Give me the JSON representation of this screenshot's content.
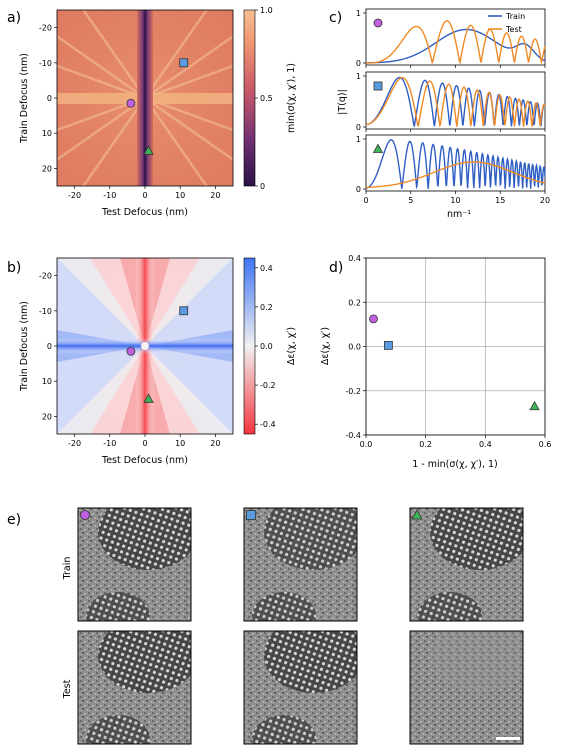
{
  "panel_labels": {
    "a": "a)",
    "b": "b)",
    "c": "c)",
    "d": "d)",
    "e": "e)"
  },
  "panel_a": {
    "xlabel": "Test Defocus (nm)",
    "ylabel": "Train Defocus (nm)",
    "xticks": [
      "-20",
      "-10",
      "0",
      "10",
      "20"
    ],
    "yticks": [
      "-20",
      "-10",
      "0",
      "10",
      "20"
    ],
    "colorbar_label": "min(σ(χ, χ′), 1)",
    "colorbar_ticks": [
      "1.0",
      "0.5",
      "0"
    ]
  },
  "panel_b": {
    "xlabel": "Test Defocus (nm)",
    "ylabel": "Train Defocus (nm)",
    "xticks": [
      "-20",
      "-10",
      "0",
      "10",
      "20"
    ],
    "yticks": [
      "-20",
      "-10",
      "0",
      "10",
      "20"
    ],
    "colorbar_label": "Δε(χ, χ′)",
    "colorbar_ticks": [
      "0.4",
      "0.2",
      "0.0",
      "-0.2",
      "-0.4"
    ]
  },
  "panel_c": {
    "ylabel": "|T(q)|",
    "xlabel": "nm⁻¹",
    "xticks": [
      "0",
      "5",
      "10",
      "15",
      "20"
    ],
    "yticks": [
      "0",
      "1"
    ],
    "legend": [
      "Train",
      "Test"
    ],
    "colors": {
      "train": "#2f5ec4",
      "test": "#f08a24"
    }
  },
  "panel_d": {
    "xlabel": "1 - min(σ(χ, χ′), 1)",
    "ylabel": "Δε(χ, χ′)",
    "xticks": [
      "0.0",
      "0.2",
      "0.4",
      "0.6"
    ],
    "yticks": [
      "0.4",
      "0.2",
      "0.0",
      "-0.2",
      "-0.4"
    ]
  },
  "panel_e": {
    "row_labels": [
      "Train",
      "Test"
    ]
  },
  "markers": {
    "circle": {
      "color": "#c060e0",
      "test_defocus": -4,
      "train_defocus": 1.5
    },
    "square": {
      "color": "#5a9be0",
      "test_defocus": 11,
      "train_defocus": -10
    },
    "triangle": {
      "color": "#3fb55a",
      "test_defocus": 1,
      "train_defocus": 15
    }
  },
  "chart_data": [
    {
      "type": "scatter",
      "panel": "d",
      "xlabel": "1 - min(σ(χ, χ′), 1)",
      "ylabel": "Δε(χ, χ′)",
      "xlim": [
        0,
        0.6
      ],
      "ylim": [
        -0.4,
        0.4
      ],
      "grid": true,
      "points": [
        {
          "marker": "circle",
          "x": 0.025,
          "y": 0.125
        },
        {
          "marker": "square",
          "x": 0.075,
          "y": 0.005
        },
        {
          "marker": "triangle",
          "x": 0.565,
          "y": -0.27
        }
      ]
    },
    {
      "type": "line",
      "panel": "c",
      "xlabel": "nm⁻¹",
      "ylabel": "|T(q)|",
      "xlim": [
        0,
        20
      ],
      "ylim": [
        0,
        1
      ],
      "series": [
        {
          "name": "Train"
        },
        {
          "name": "Test"
        }
      ]
    }
  ]
}
